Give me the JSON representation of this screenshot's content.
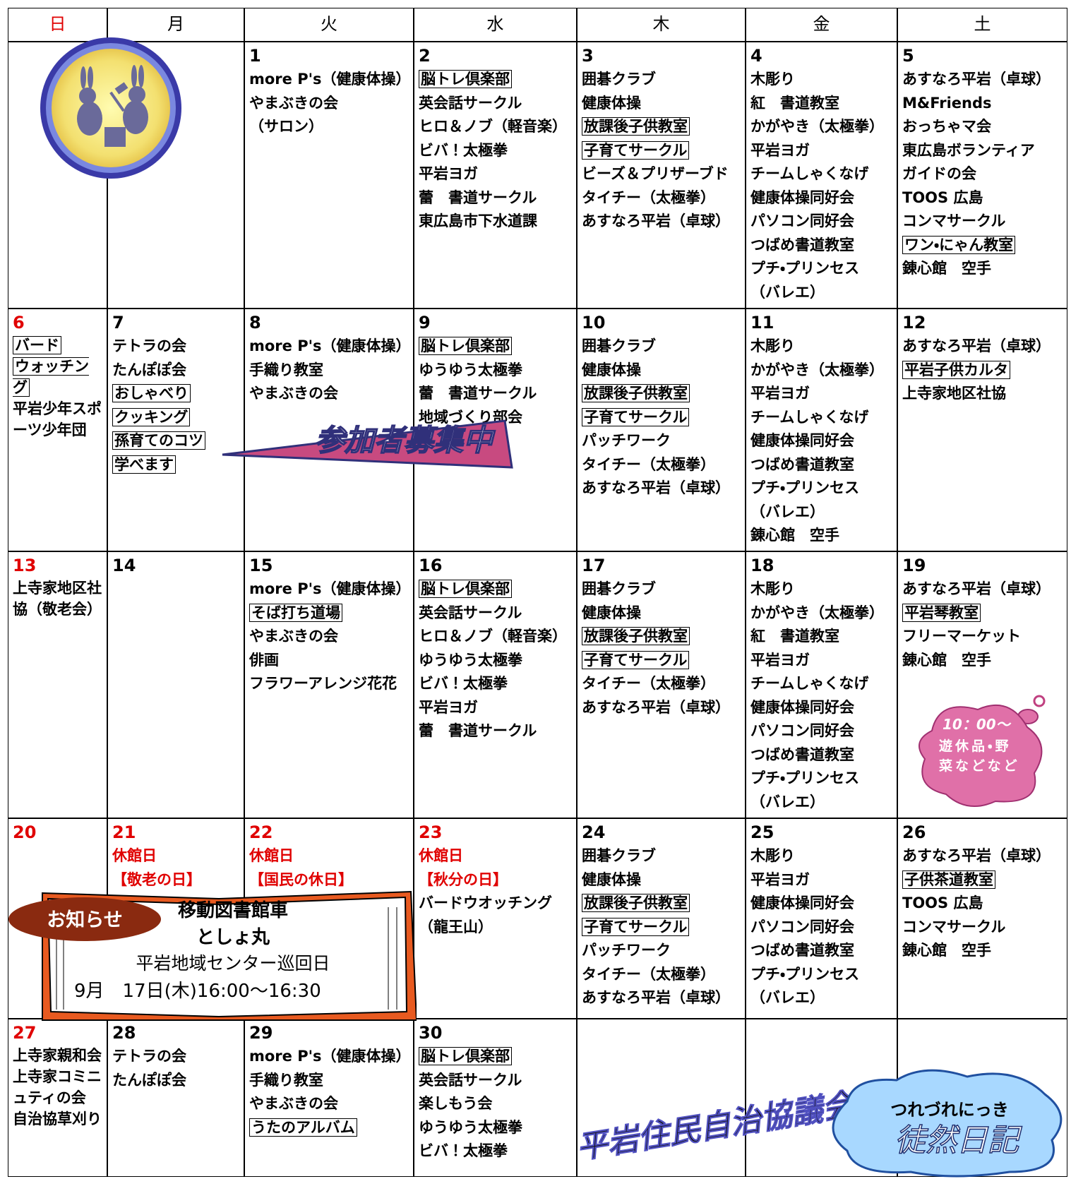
{
  "header": {
    "days": [
      "日",
      "月",
      "火",
      "水",
      "木",
      "金",
      "土"
    ]
  },
  "weeks": [
    {
      "days": [
        {},
        {},
        {
          "date": 1,
          "items": [
            "more P's（健康体操）",
            "やまぶきの会",
            "（サロン）"
          ]
        },
        {
          "date": 2,
          "items": [
            {
              "text": "脳トレ倶楽部",
              "boxed": true
            },
            "英会話サークル",
            "ヒロ＆ノブ（軽音楽）",
            "ビバ！太極拳",
            "平岩ヨガ",
            "蕾　書道サークル",
            "東広島市下水道課"
          ]
        },
        {
          "date": 3,
          "items": [
            "囲碁クラブ",
            "健康体操",
            {
              "text": "放課後子供教室",
              "boxed": true
            },
            {
              "text": "子育てサークル",
              "boxed": true
            },
            "ビーズ＆プリザーブド",
            "タイチー（太極拳）",
            "あすなろ平岩（卓球）"
          ]
        },
        {
          "date": 4,
          "items": [
            "木彫り",
            "紅　書道教室",
            "かがやき（太極拳）",
            "平岩ヨガ",
            "チームしゃくなげ",
            "健康体操同好会",
            "パソコン同好会",
            "つばめ書道教室",
            "プチ・プリンセス",
            "（バレエ）"
          ]
        },
        {
          "date": 5,
          "items": [
            "あすなろ平岩（卓球）",
            "M&Friends",
            "おっちゃマ会",
            "東広島ボランティア",
            "ガイドの会",
            "TOOS 広島",
            "コンマサークル",
            {
              "text": "ワン・にゃん教室",
              "boxed": true
            },
            "錬心館　空手"
          ]
        }
      ]
    },
    {
      "days": [
        {
          "date": 6,
          "items": [
            {
              "text": "バード",
              "boxed": true
            },
            {
              "text": "ウォッチング",
              "boxed": true
            },
            "平岩少年スポーツ少年団"
          ]
        },
        {
          "date": 7,
          "items": [
            "テトラの会",
            "たんぽぽ会",
            {
              "text": "おしゃべり",
              "boxed": true
            },
            {
              "text": "クッキング",
              "boxed": true
            },
            {
              "text": "孫育てのコツ",
              "boxed": true
            },
            {
              "text": "学べます",
              "boxed": true
            }
          ]
        },
        {
          "date": 8,
          "items": [
            "more P's（健康体操）",
            "手織り教室",
            "やまぶきの会"
          ]
        },
        {
          "date": 9,
          "items": [
            {
              "text": "脳トレ倶楽部",
              "boxed": true
            },
            "ゆうゆう太極拳",
            "蕾　書道サークル",
            "地域づくり部会"
          ]
        },
        {
          "date": 10,
          "items": [
            "囲碁クラブ",
            "健康体操",
            {
              "text": "放課後子供教室",
              "boxed": true
            },
            {
              "text": "子育てサークル",
              "boxed": true
            },
            "パッチワーク",
            "タイチー（太極拳）",
            "あすなろ平岩（卓球）"
          ]
        },
        {
          "date": 11,
          "items": [
            "木彫り",
            "かがやき（太極拳）",
            "平岩ヨガ",
            "チームしゃくなげ",
            "健康体操同好会",
            "つばめ書道教室",
            "プチ・プリンセス",
            "（バレエ）",
            "錬心館　空手"
          ]
        },
        {
          "date": 12,
          "items": [
            "あすなろ平岩（卓球）",
            {
              "text": "平岩子供カルタ",
              "boxed": true
            },
            "上寺家地区社協"
          ]
        }
      ]
    },
    {
      "days": [
        {
          "date": 13,
          "items": [
            "上寺家地区社協（敬老会）"
          ]
        },
        {
          "date": 14,
          "items": []
        },
        {
          "date": 15,
          "items": [
            "more P's（健康体操）",
            {
              "text": "そば打ち道場",
              "boxed": true
            },
            "やまぶきの会",
            "俳画",
            "フラワーアレンジ花花"
          ]
        },
        {
          "date": 16,
          "items": [
            {
              "text": "脳トレ倶楽部",
              "boxed": true
            },
            "英会話サークル",
            "ヒロ＆ノブ（軽音楽）",
            "ゆうゆう太極拳",
            "ビバ！太極拳",
            "平岩ヨガ",
            "蕾　書道サークル"
          ]
        },
        {
          "date": 17,
          "items": [
            "囲碁クラブ",
            "健康体操",
            {
              "text": "放課後子供教室",
              "boxed": true
            },
            {
              "text": "子育てサークル",
              "boxed": true
            },
            "タイチー（太極拳）",
            "あすなろ平岩（卓球）"
          ]
        },
        {
          "date": 18,
          "items": [
            "木彫り",
            "かがやき（太極拳）",
            "紅　書道教室",
            "平岩ヨガ",
            "チームしゃくなげ",
            "健康体操同好会",
            "パソコン同好会",
            "つばめ書道教室",
            "プチ・プリンセス",
            "（バレエ）"
          ]
        },
        {
          "date": 19,
          "items": [
            "あすなろ平岩（卓球）",
            {
              "text": "平岩琴教室",
              "boxed": true
            },
            "フリーマーケット",
            "錬心館　空手"
          ]
        }
      ]
    },
    {
      "days": [
        {
          "date": 20,
          "items": []
        },
        {
          "date": 21,
          "holiday": true,
          "items": [
            "休館日",
            "【敬老の日】"
          ]
        },
        {
          "date": 22,
          "holiday": true,
          "items": [
            "休館日",
            "【国民の休日】"
          ]
        },
        {
          "date": 23,
          "holiday": true,
          "items": [
            "休館日",
            "【秋分の日】",
            "バードウオッチング",
            "（龍王山）"
          ]
        },
        {
          "date": 24,
          "items": [
            "囲碁クラブ",
            "健康体操",
            {
              "text": "放課後子供教室",
              "boxed": true
            },
            {
              "text": "子育てサークル",
              "boxed": true
            },
            "パッチワーク",
            "タイチー（太極拳）",
            "あすなろ平岩（卓球）"
          ]
        },
        {
          "date": 25,
          "items": [
            "木彫り",
            "平岩ヨガ",
            "健康体操同好会",
            "パソコン同好会",
            "つばめ書道教室",
            "プチ・プリンセス",
            "（バレエ）"
          ]
        },
        {
          "date": 26,
          "items": [
            "あすなろ平岩（卓球）",
            {
              "text": "子供茶道教室",
              "boxed": true
            },
            "TOOS 広島",
            "コンマサークル",
            "錬心館　空手"
          ]
        }
      ]
    },
    {
      "days": [
        {
          "date": 27,
          "items": [
            "上寺家親和会",
            "上寺家コミニュティの会",
            "自治協草刈り"
          ]
        },
        {
          "date": 28,
          "items": [
            "テトラの会",
            "たんぽぽ会"
          ]
        },
        {
          "date": 29,
          "items": [
            "more P's（健康体操）",
            "手織り教室",
            "やまぶきの会",
            {
              "text": "うたのアルバム",
              "boxed": true
            }
          ]
        },
        {
          "date": 30,
          "items": [
            {
              "text": "脳トレ倶楽部",
              "boxed": true
            },
            "英会話サークル",
            "楽しもう会",
            "ゆうゆう太極拳",
            "ビバ！太極拳"
          ]
        },
        {},
        {},
        {}
      ]
    }
  ],
  "banner": {
    "text": "参加者募集中"
  },
  "bubble": {
    "lines": [
      "10：00～",
      "遊休品・野菜などなど"
    ]
  },
  "notice": {
    "badge": "お知らせ",
    "lines": [
      "移動図書館車",
      "としょ丸",
      "平岩地域センター巡回日",
      "9月　17日(木)16:00～16:30"
    ]
  },
  "footer": {
    "org": "平岩住民自治協議会",
    "cloud_kana": "つれづれにっき",
    "cloud_title": "徒然日記"
  }
}
